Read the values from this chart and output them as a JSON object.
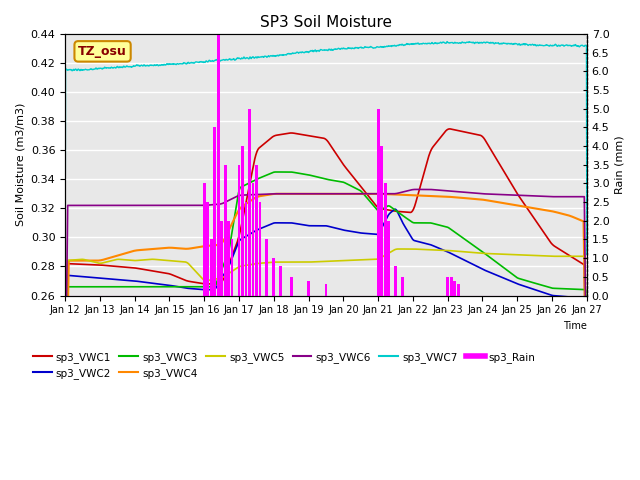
{
  "title": "SP3 Soil Moisture",
  "xlabel": "Time",
  "ylabel_left": "Soil Moisture (m3/m3)",
  "ylabel_right": "Rain (mm)",
  "ylim_left": [
    0.26,
    0.44
  ],
  "ylim_right": [
    0.0,
    7.0
  ],
  "yticks_left": [
    0.26,
    0.28,
    0.3,
    0.32,
    0.34,
    0.36,
    0.38,
    0.4,
    0.42,
    0.44
  ],
  "yticks_right": [
    0.0,
    0.5,
    1.0,
    1.5,
    2.0,
    2.5,
    3.0,
    3.5,
    4.0,
    4.5,
    5.0,
    5.5,
    6.0,
    6.5,
    7.0
  ],
  "xtick_labels": [
    "Jan 12",
    "Jan 13",
    "Jan 14",
    "Jan 15",
    "Jan 16",
    "Jan 17",
    "Jan 18",
    "Jan 19",
    "Jan 20",
    "Jan 21",
    "Jan 22",
    "Jan 23",
    "Jan 24",
    "Jan 25",
    "Jan 26",
    "Jan 27"
  ],
  "colors": {
    "VWC1": "#cc0000",
    "VWC2": "#0000cc",
    "VWC3": "#00bb00",
    "VWC4": "#ff8800",
    "VWC5": "#cccc00",
    "VWC6": "#880088",
    "VWC7": "#00cccc",
    "Rain": "#ff00ff"
  },
  "background_color": "#e8e8e8",
  "annotation_text": "TZ_osu",
  "annotation_fgcolor": "#880000",
  "annotation_bgcolor": "#ffff99",
  "annotation_edgecolor": "#cc8800"
}
